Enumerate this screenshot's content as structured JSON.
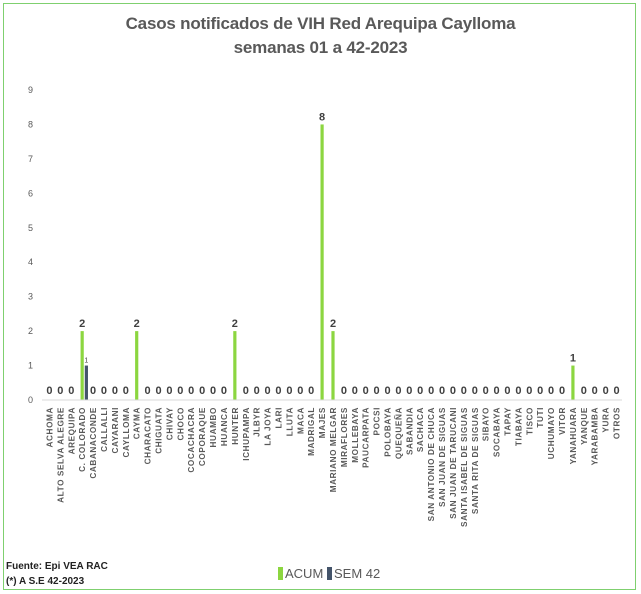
{
  "header": {
    "title_line1": "Casos notificados de VIH Red Arequipa Caylloma",
    "title_line2": "semanas 01 a 42-2023"
  },
  "footer": {
    "source_line1": "Fuente: Epi VEA RAC",
    "source_line2": "(*) A S.E 42-2023"
  },
  "colors": {
    "acum": "#8cd640",
    "sem": "#44546a",
    "axis_text": "#595959",
    "frame": "#7fd06f"
  },
  "chart_data": {
    "type": "bar",
    "title": "Casos notificados de VIH Red Arequipa Caylloma semanas 01 a 42-2023",
    "ylim": [
      0,
      9
    ],
    "yticks": [
      0,
      1,
      2,
      3,
      4,
      5,
      6,
      7,
      8,
      9
    ],
    "grid": false,
    "legend_position": "bottom",
    "categories": [
      "ACHOMA",
      "ALTO SELVA ALEGRE",
      "AREQUIPA",
      "C. COLORADO",
      "CABANACONDE",
      "CALLALLI",
      "CAYARANI",
      "CAYLLOMA",
      "CAYMA",
      "CHARACATO",
      "CHIGUATA",
      "CHIVAY",
      "CHOCO",
      "COCACHACRA",
      "COPORAQUE",
      "HUAMBO",
      "HUANCA",
      "HUNTER",
      "ICHUPAMPA",
      "JLBYR",
      "LA JOYA",
      "LARI",
      "LLUTA",
      "MACA",
      "MADRIGAL",
      "MAJES",
      "MARIANO MELGAR",
      "MIRAFLORES",
      "MOLLEBAYA",
      "PAUCARPATA",
      "POCSI",
      "POLOBAYA",
      "QUEQUEÑA",
      "SABANDIA",
      "SACHACA",
      "SAN ANTONIO DE CHUCA",
      "SAN JUAN DE SIGUAS",
      "SAN JUAN DE TARUCANI",
      "SANTA ISABEL DE SIGUAS",
      "SANTA RITA DE SIGUAS",
      "SIBAYO",
      "SOCABAYA",
      "TAPAY",
      "TIABAYA",
      "TISCO",
      "TUTI",
      "UCHUMAYO",
      "VITOR",
      "YANAHUARA",
      "YANQUE",
      "YARABAMBA",
      "YURA",
      "OTROS"
    ],
    "series": [
      {
        "name": "ACUM",
        "color": "#8cd640",
        "values": [
          0,
          0,
          0,
          2,
          0,
          0,
          0,
          0,
          2,
          0,
          0,
          0,
          0,
          0,
          0,
          0,
          0,
          2,
          0,
          0,
          0,
          0,
          0,
          0,
          0,
          8,
          2,
          0,
          0,
          0,
          0,
          0,
          0,
          0,
          0,
          0,
          0,
          0,
          0,
          0,
          0,
          0,
          0,
          0,
          0,
          0,
          0,
          0,
          1,
          0,
          0,
          0,
          0
        ]
      },
      {
        "name": "SEM 42",
        "color": "#44546a",
        "values": [
          null,
          null,
          null,
          1,
          null,
          null,
          null,
          null,
          null,
          null,
          null,
          null,
          null,
          null,
          null,
          null,
          null,
          null,
          null,
          null,
          null,
          null,
          null,
          null,
          null,
          null,
          null,
          null,
          null,
          null,
          null,
          null,
          null,
          null,
          null,
          null,
          null,
          null,
          null,
          null,
          null,
          null,
          null,
          null,
          null,
          null,
          null,
          null,
          null,
          null,
          null,
          null,
          null
        ]
      }
    ]
  }
}
